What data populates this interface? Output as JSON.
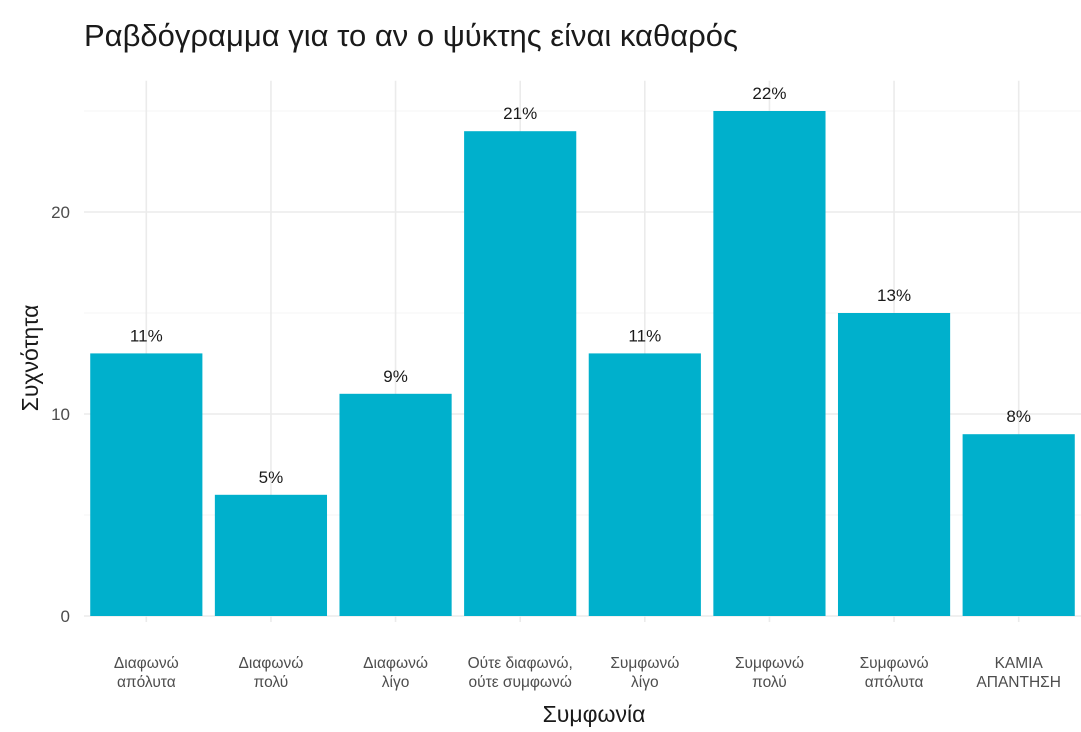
{
  "chart_data": {
    "type": "bar",
    "title": "Ραβδόγραμμα για το αν ο ψύκτης είναι καθαρός",
    "xlabel": "Συμφωνία",
    "ylabel": "Συχνότητα",
    "categories": [
      [
        "Διαφωνώ",
        "απόλυτα"
      ],
      [
        "Διαφωνώ",
        "πολύ"
      ],
      [
        "Διαφωνώ",
        "λίγο"
      ],
      [
        "Ούτε διαφωνώ,",
        "ούτε συμφωνώ"
      ],
      [
        "Συμφωνώ",
        "λίγο"
      ],
      [
        "Συμφωνώ",
        "πολύ"
      ],
      [
        "Συμφωνώ",
        "απόλυτα"
      ],
      [
        "ΚΑΜΙΑ",
        "ΑΠΑΝΤΗΣΗ"
      ]
    ],
    "values": [
      13,
      6,
      11,
      24,
      13,
      25,
      15,
      9
    ],
    "data_labels": [
      "11%",
      "5%",
      "9%",
      "21%",
      "11%",
      "22%",
      "13%",
      "8%"
    ],
    "ylim": [
      0,
      26.5
    ],
    "yticks": [
      0,
      10,
      20
    ],
    "grid": true,
    "legend": "none",
    "bar_color": "#00B0CC"
  }
}
